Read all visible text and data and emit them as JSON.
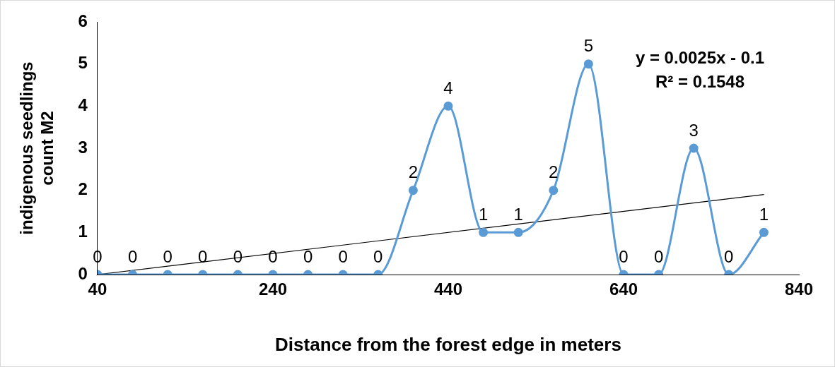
{
  "chart_data": {
    "type": "line",
    "xlabel": "Distance from the forest edge in meters",
    "ylabel": "indigenous seedlings count M2",
    "x": [
      40,
      80,
      120,
      160,
      200,
      240,
      280,
      320,
      360,
      400,
      440,
      480,
      520,
      560,
      600,
      640,
      680,
      720,
      760,
      800
    ],
    "series": [
      {
        "color": "#5b9bd5",
        "values": [
          0,
          0,
          0,
          0,
          0,
          0,
          0,
          0,
          0,
          2,
          4,
          1,
          1,
          2,
          5,
          0,
          0,
          3,
          0,
          1
        ],
        "value_labels": [
          "0",
          "0",
          "0",
          "0",
          "0",
          "0",
          "0",
          "0",
          "0",
          "2",
          "4",
          "1",
          "1",
          "2",
          "5",
          "0",
          "0",
          "3",
          "0",
          "1"
        ]
      },
      {
        "type": "line",
        "x": [
          40,
          800
        ],
        "values": [
          0,
          1.9
        ],
        "color": "#000000",
        "marker": "none"
      }
    ],
    "xlim": [
      40,
      840
    ],
    "xticks": [
      40,
      240,
      440,
      640,
      840
    ],
    "ylim": [
      0,
      6
    ],
    "yticks": [
      0,
      1,
      2,
      3,
      4,
      5,
      6
    ],
    "grid": false,
    "legend": false,
    "marker": "circle",
    "annotations": [
      "y = 0.0025x - 0.1",
      "R² = 0.1548"
    ]
  }
}
